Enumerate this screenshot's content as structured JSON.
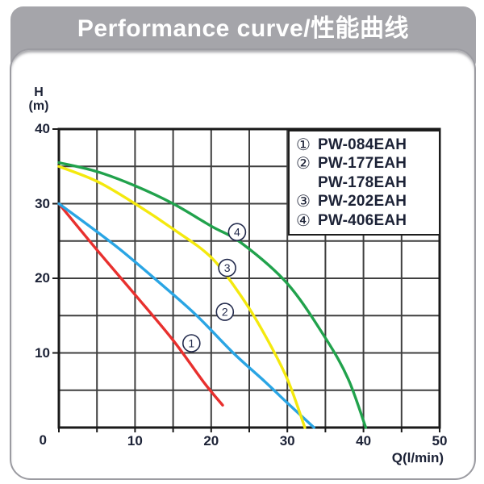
{
  "header": {
    "title": "Performance curve/性能曲线"
  },
  "axes": {
    "y_title_line1": "H",
    "y_title_line2": "(m)",
    "x_title": "Q(l/min)",
    "origin_label": "0",
    "x_tick_labels": [
      10,
      20,
      30,
      40,
      50
    ],
    "y_tick_labels": [
      10,
      20,
      30,
      40
    ]
  },
  "legend": {
    "items": [
      {
        "symbol": "①",
        "label": "PW-084EAH"
      },
      {
        "symbol": "②",
        "label": "PW-177EAH"
      },
      {
        "symbol": "",
        "label": "PW-178EAH"
      },
      {
        "symbol": "③",
        "label": "PW-202EAH"
      },
      {
        "symbol": "④",
        "label": "PW-406EAH"
      }
    ]
  },
  "chart_data": {
    "type": "line",
    "title": "Performance curve/性能曲线",
    "xlabel": "Q(l/min)",
    "ylabel": "H (m)",
    "xlim": [
      0,
      50
    ],
    "ylim": [
      0,
      40
    ],
    "grid_step": {
      "x": 5,
      "y": 5
    },
    "x_ticks_every": 5,
    "legend_position": "top-right",
    "series": [
      {
        "name": "PW-084EAH",
        "marker_symbol": "①",
        "color": "#e8302e",
        "points": [
          [
            0,
            30
          ],
          [
            5,
            23.8
          ],
          [
            10,
            17.8
          ],
          [
            15,
            11.7
          ],
          [
            19,
            6.1
          ],
          [
            21.5,
            3
          ]
        ]
      },
      {
        "name": "PW-177EAH / PW-178EAH",
        "marker_symbol": "②",
        "color": "#2aa5e4",
        "points": [
          [
            0,
            30
          ],
          [
            4,
            27
          ],
          [
            8,
            23.9
          ],
          [
            13,
            19.6
          ],
          [
            18,
            15.1
          ],
          [
            23,
            9.9
          ],
          [
            27,
            6.2
          ],
          [
            30,
            3.3
          ],
          [
            33.5,
            0
          ]
        ]
      },
      {
        "name": "PW-202EAH",
        "marker_symbol": "③",
        "color": "#f4e90e",
        "points": [
          [
            0,
            35
          ],
          [
            5,
            33
          ],
          [
            10,
            30
          ],
          [
            15,
            26.6
          ],
          [
            20,
            22.8
          ],
          [
            24,
            17.5
          ],
          [
            27,
            12.5
          ],
          [
            30,
            6.5
          ],
          [
            32.3,
            0
          ]
        ]
      },
      {
        "name": "PW-406EAH",
        "marker_symbol": "④",
        "color": "#21a24c",
        "points": [
          [
            0,
            35.5
          ],
          [
            5,
            34.3
          ],
          [
            10,
            32.4
          ],
          [
            15,
            30
          ],
          [
            20,
            27
          ],
          [
            24,
            24.7
          ],
          [
            30,
            19.3
          ],
          [
            35,
            12
          ],
          [
            38,
            6.5
          ],
          [
            40.3,
            0
          ]
        ]
      }
    ],
    "curve_markers": [
      {
        "digit": "1",
        "symbol": "①",
        "q": 17.4,
        "h": 11.3
      },
      {
        "digit": "2",
        "symbol": "②",
        "q": 21.8,
        "h": 15.5
      },
      {
        "digit": "3",
        "symbol": "③",
        "q": 22.1,
        "h": 21.4
      },
      {
        "digit": "4",
        "symbol": "④",
        "q": 23.4,
        "h": 26.2
      }
    ]
  },
  "colors": {
    "banner": "#a5a5aa",
    "panel_border": "#9b9ba1",
    "grid": "#3f3f3f",
    "axis": "#1a1a1a",
    "text": "#1c2236"
  }
}
